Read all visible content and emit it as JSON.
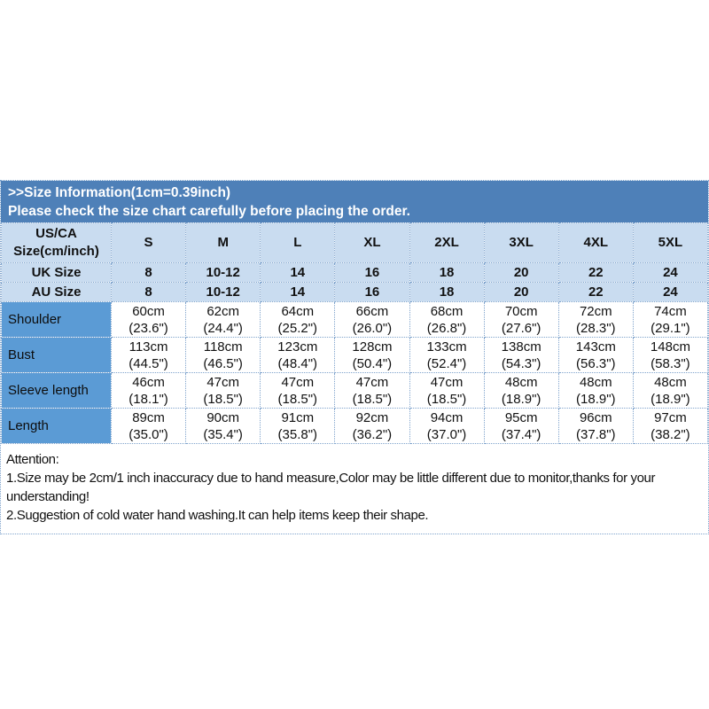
{
  "header": {
    "line1": ">>Size Information(1cm=0.39inch)",
    "line2": "Please check the size chart carefully before placing the order."
  },
  "table": {
    "corner": {
      "line1": "US/CA",
      "line2": "Size(cm/inch)"
    },
    "size_header": [
      "S",
      "M",
      "L",
      "XL",
      "2XL",
      "3XL",
      "4XL",
      "5XL"
    ],
    "uk": {
      "label": "UK Size",
      "values": [
        "8",
        "10-12",
        "14",
        "16",
        "18",
        "20",
        "22",
        "24"
      ]
    },
    "au": {
      "label": "AU Size",
      "values": [
        "8",
        "10-12",
        "14",
        "16",
        "18",
        "20",
        "22",
        "24"
      ]
    },
    "measure_rows": [
      {
        "label": "Shoulder",
        "cells": [
          "60cm\n(23.6\")",
          "62cm\n(24.4\")",
          "64cm\n(25.2\")",
          "66cm\n(26.0\")",
          "68cm\n(26.8\")",
          "70cm\n(27.6\")",
          "72cm\n(28.3\")",
          "74cm\n(29.1\")"
        ]
      },
      {
        "label": "Bust",
        "cells": [
          "113cm\n(44.5\")",
          "118cm\n(46.5\")",
          "123cm\n(48.4\")",
          "128cm\n(50.4\")",
          "133cm\n(52.4\")",
          "138cm\n(54.3\")",
          "143cm\n(56.3\")",
          "148cm\n(58.3\")"
        ]
      },
      {
        "label": "Sleeve length",
        "cells": [
          "46cm\n(18.1\")",
          "47cm\n(18.5\")",
          "47cm\n(18.5\")",
          "47cm\n(18.5\")",
          "47cm\n(18.5\")",
          "48cm\n(18.9\")",
          "48cm\n(18.9\")",
          "48cm\n(18.9\")"
        ]
      },
      {
        "label": "Length",
        "cells": [
          "89cm\n(35.0\")",
          "90cm\n(35.4\")",
          "91cm\n(35.8\")",
          "92cm\n(36.2\")",
          "94cm\n(37.0\")",
          "95cm\n(37.4\")",
          "96cm\n(37.8\")",
          "97cm\n(38.2\")"
        ]
      }
    ]
  },
  "attention": {
    "title": "Attention:",
    "line1": "1.Size may be 2cm/1 inch inaccuracy due to hand measure,Color may be little different due to monitor,thanks for your understanding!",
    "line2": "2.Suggestion of cold water hand washing.It can help items keep their shape."
  },
  "colors": {
    "header_bar_bg": "#4e80b8",
    "header_bar_text": "#ffffff",
    "size_rows_bg": "#c9dcf0",
    "label_column_bg": "#5b9bd5",
    "grid_dotted_border": "#7fa3cc",
    "body_text": "#111111"
  }
}
